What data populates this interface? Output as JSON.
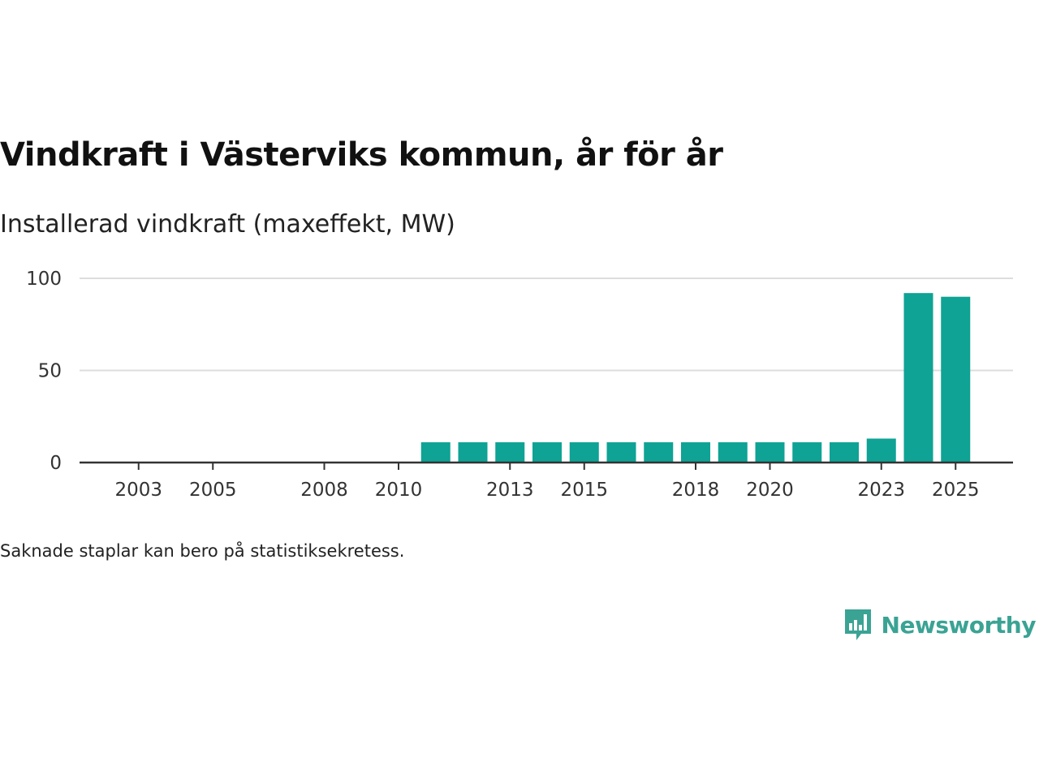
{
  "title": "Vindkraft i Västerviks kommun, år för år",
  "subtitle": "Installerad vindkraft (maxeffekt, MW)",
  "footnote": "Saknade staplar kan bero på statistiksekretess.",
  "brand": {
    "name": "Newsworthy",
    "icon": "bar-chart-speech-bubble-icon",
    "color": "#3aa394"
  },
  "colors": {
    "bar": "#0ea394",
    "grid": "#dddddd",
    "axis": "#333333"
  },
  "chart_data": {
    "type": "bar",
    "title": "Vindkraft i Västerviks kommun, år för år",
    "subtitle": "Installerad vindkraft (maxeffekt, MW)",
    "xlabel": "",
    "ylabel": "",
    "categories": [
      "2002",
      "2003",
      "2004",
      "2005",
      "2006",
      "2007",
      "2008",
      "2009",
      "2010",
      "2011",
      "2012",
      "2013",
      "2014",
      "2015",
      "2016",
      "2017",
      "2018",
      "2019",
      "2020",
      "2021",
      "2022",
      "2023",
      "2024",
      "2025"
    ],
    "values": [
      null,
      null,
      null,
      null,
      null,
      null,
      null,
      null,
      null,
      11,
      11,
      11,
      11,
      11,
      11,
      11,
      11,
      11,
      11,
      11,
      11,
      13,
      92,
      90
    ],
    "x_tick_labels": [
      "2003",
      "2005",
      "2008",
      "2010",
      "2013",
      "2015",
      "2018",
      "2020",
      "2023",
      "2025"
    ],
    "y_ticks": [
      0,
      50,
      100
    ],
    "ylim": [
      0,
      100
    ],
    "grid": true,
    "legend": "none"
  }
}
